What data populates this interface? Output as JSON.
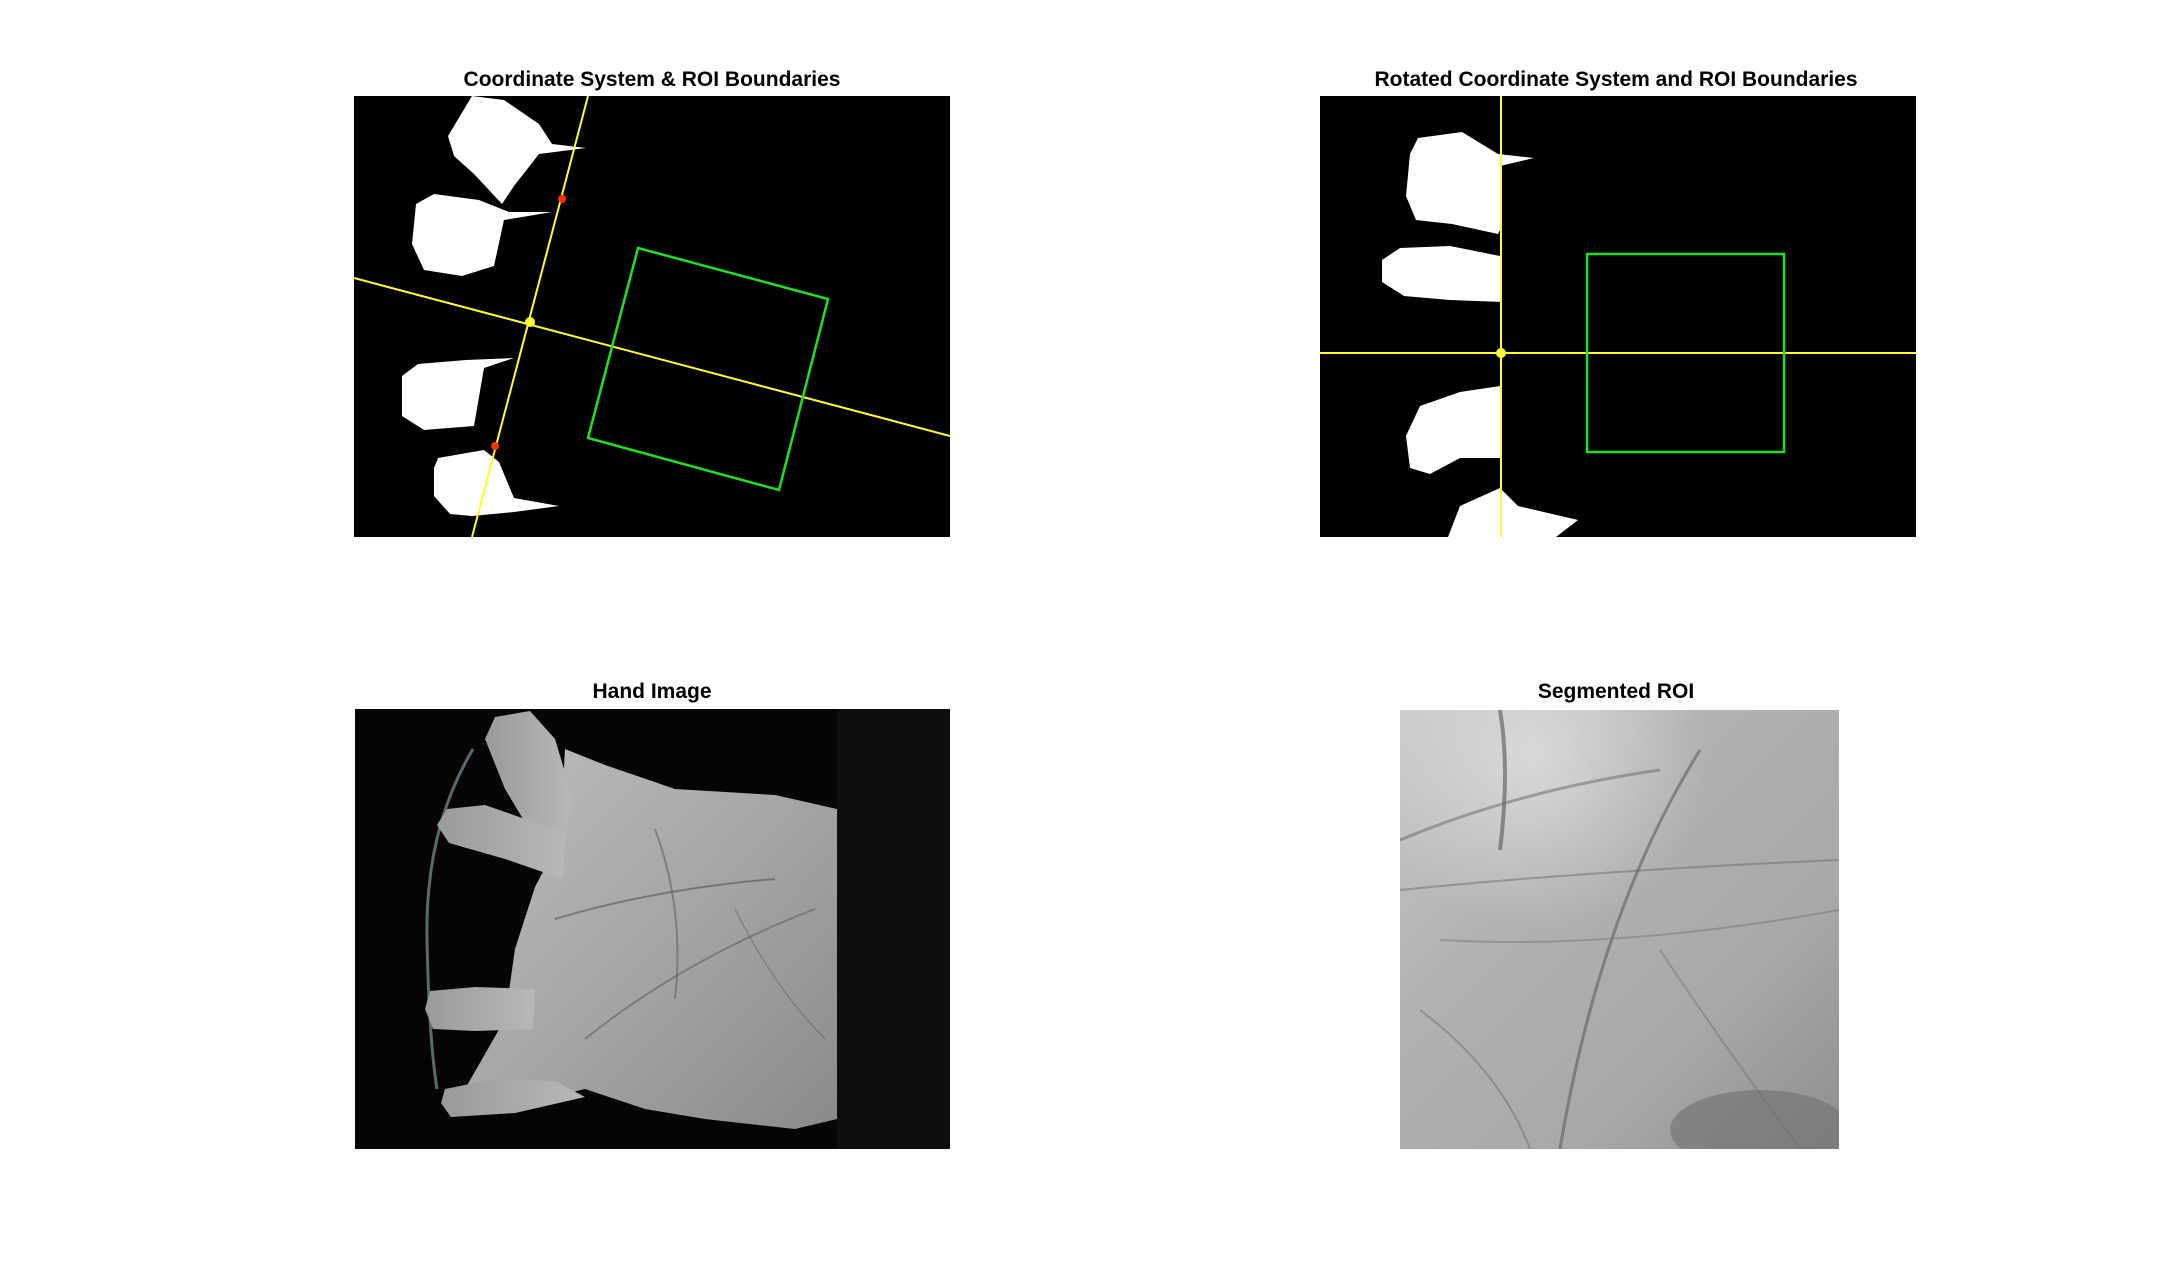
{
  "figure": {
    "background": "#ffffff",
    "panels": [
      {
        "id": "p1",
        "title": "Coordinate System & ROI Boundaries"
      },
      {
        "id": "p2",
        "title": "Rotated Coordinate System and ROI Boundaries"
      },
      {
        "id": "p3",
        "title": "Hand Image"
      },
      {
        "id": "p4",
        "title": "Segmented ROI"
      }
    ]
  },
  "colors": {
    "axis_line": "#ffff33",
    "roi_box": "#22dd22",
    "keypoint": "#ff3300",
    "mask_fill": "#ffffff",
    "image_background": "#000000"
  }
}
